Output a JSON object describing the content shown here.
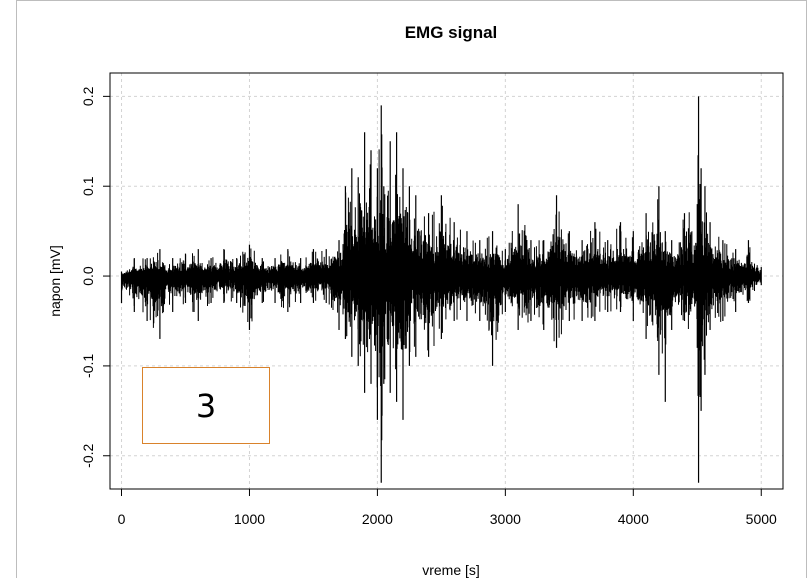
{
  "chart_data": {
    "type": "line",
    "title": "EMG signal",
    "xlabel": "vreme [s]",
    "ylabel": "napon [mV]",
    "xlim": [
      0,
      5000
    ],
    "ylim": [
      -0.2,
      0.2
    ],
    "x_ticks": [
      0,
      1000,
      2000,
      3000,
      4000,
      5000
    ],
    "x_tick_labels": [
      "0",
      "1000",
      "2000",
      "3000",
      "4000",
      "5000"
    ],
    "y_ticks": [
      -0.2,
      -0.1,
      0.0,
      0.1,
      0.2
    ],
    "y_tick_labels": [
      "-0.2",
      "-0.1",
      "0.0",
      "0.1",
      "0.2"
    ],
    "grid": true,
    "color": "#000000",
    "series": [
      {
        "x": [
          0,
          100,
          200,
          300,
          400,
          500,
          600,
          700,
          800,
          900,
          1000,
          1100,
          1200,
          1300,
          1400,
          1500,
          1600,
          1700,
          1750,
          1800,
          1850,
          1900,
          1950,
          2000,
          2030,
          2050,
          2100,
          2150,
          2200,
          2250,
          2300,
          2400,
          2500,
          2600,
          2700,
          2800,
          2900,
          3000,
          3100,
          3200,
          3300,
          3400,
          3500,
          3600,
          3700,
          3800,
          3900,
          4000,
          4100,
          4200,
          4250,
          4300,
          4400,
          4500,
          4510,
          4530,
          4560,
          4600,
          4700,
          4800,
          4900,
          5000
        ],
        "y_max": [
          0.005,
          0.02,
          0.02,
          0.03,
          0.02,
          0.025,
          0.03,
          0.02,
          0.03,
          0.02,
          0.035,
          0.02,
          0.02,
          0.03,
          0.02,
          0.03,
          0.03,
          0.04,
          0.1,
          0.12,
          0.11,
          0.16,
          0.14,
          0.12,
          0.19,
          0.1,
          0.15,
          0.16,
          0.12,
          0.1,
          0.09,
          0.07,
          0.09,
          0.06,
          0.05,
          0.04,
          0.05,
          0.03,
          0.08,
          0.04,
          0.04,
          0.09,
          0.05,
          0.04,
          0.06,
          0.04,
          0.06,
          0.05,
          0.07,
          0.1,
          0.05,
          0.04,
          0.07,
          0.08,
          0.2,
          0.12,
          0.1,
          0.06,
          0.04,
          0.03,
          0.04,
          0.01
        ],
        "y_min": [
          -0.03,
          -0.04,
          -0.05,
          -0.07,
          -0.04,
          -0.03,
          -0.05,
          -0.03,
          -0.03,
          -0.03,
          -0.06,
          -0.03,
          -0.03,
          -0.04,
          -0.03,
          -0.03,
          -0.03,
          -0.06,
          -0.07,
          -0.09,
          -0.1,
          -0.13,
          -0.12,
          -0.16,
          -0.23,
          -0.12,
          -0.13,
          -0.14,
          -0.16,
          -0.1,
          -0.09,
          -0.09,
          -0.07,
          -0.05,
          -0.05,
          -0.05,
          -0.1,
          -0.04,
          -0.06,
          -0.05,
          -0.06,
          -0.08,
          -0.05,
          -0.05,
          -0.05,
          -0.04,
          -0.04,
          -0.05,
          -0.07,
          -0.11,
          -0.14,
          -0.06,
          -0.05,
          -0.08,
          -0.23,
          -0.15,
          -0.11,
          -0.06,
          -0.05,
          -0.04,
          -0.03,
          -0.01
        ]
      }
    ]
  },
  "annotation": {
    "label": "3",
    "border_color": "#d9822b"
  }
}
